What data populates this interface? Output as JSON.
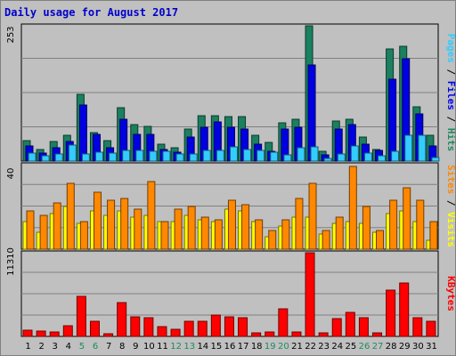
{
  "chart_data": {
    "type": "bar",
    "title": "Daily usage for August 2017",
    "categories": [
      "1",
      "2",
      "3",
      "4",
      "5",
      "6",
      "7",
      "8",
      "9",
      "10",
      "11",
      "12",
      "13",
      "14",
      "15",
      "16",
      "17",
      "18",
      "19",
      "20",
      "21",
      "22",
      "23",
      "24",
      "25",
      "26",
      "27",
      "28",
      "29",
      "30",
      "31"
    ],
    "weekend_days": [
      "5",
      "6",
      "12",
      "13",
      "19",
      "20",
      "26",
      "27"
    ],
    "panels": [
      {
        "name": "pages-files-hits",
        "max_label": "253",
        "ylim": [
          0,
          253
        ],
        "side_labels": [
          {
            "text": "Pages",
            "color": "#33ccff"
          },
          {
            "text": " / ",
            "color": "#000000"
          },
          {
            "text": "Files",
            "color": "#0000ee"
          },
          {
            "text": " / ",
            "color": "#000000"
          },
          {
            "text": "Hits",
            "color": "#1f8a5e"
          }
        ],
        "series": [
          {
            "name": "Hits",
            "color": "#1a8060",
            "values": [
              38,
              22,
              36,
              48,
              125,
              53,
              38,
              100,
              68,
              65,
              32,
              25,
              60,
              85,
              85,
              83,
              83,
              48,
              35,
              72,
              78,
              253,
              18,
              75,
              78,
              45,
              22,
              210,
              215,
              102,
              48
            ]
          },
          {
            "name": "Files",
            "color": "#0000e0",
            "values": [
              28,
              15,
              25,
              37,
              105,
              50,
              25,
              78,
              50,
              50,
              21,
              17,
              45,
              63,
              73,
              63,
              60,
              31,
              18,
              60,
              63,
              180,
              12,
              60,
              68,
              32,
              20,
              153,
              192,
              88,
              28
            ]
          },
          {
            "name": "Pages",
            "color": "#33ccff",
            "values": [
              15,
              10,
              13,
              30,
              14,
              16,
              15,
              20,
              20,
              18,
              18,
              14,
              14,
              20,
              20,
              27,
              22,
              20,
              17,
              12,
              25,
              27,
              5,
              14,
              28,
              15,
              10,
              18,
              48,
              48,
              6
            ]
          }
        ]
      },
      {
        "name": "sites-visits",
        "max_label": "40",
        "ylim": [
          0,
          40
        ],
        "side_labels": [
          {
            "text": "Sites",
            "color": "#ff8800"
          },
          {
            "text": " / ",
            "color": "#000000"
          },
          {
            "text": "Visits",
            "color": "#ffff00"
          }
        ],
        "series": [
          {
            "name": "Visits",
            "color": "#ffff00",
            "values": [
              13,
              8,
              17,
              20,
              12,
              18,
              16,
              18,
              15,
              16,
              13,
              13,
              16,
              14,
              13,
              19,
              18,
              13,
              6,
              11,
              15,
              15,
              7,
              12,
              13,
              12,
              8,
              17,
              18,
              13,
              4
            ]
          },
          {
            "name": "Sites",
            "color": "#ff8800",
            "values": [
              18,
              16,
              22,
              31,
              13,
              27,
              23,
              24,
              19,
              32,
              13,
              19,
              20,
              15,
              14,
              23,
              21,
              14,
              9,
              14,
              24,
              31,
              9,
              15,
              39,
              20,
              9,
              23,
              29,
              23,
              13
            ]
          }
        ]
      },
      {
        "name": "kbytes",
        "max_label": "11310",
        "ylim": [
          0,
          11310
        ],
        "side_labels": [
          {
            "text": "KBytes",
            "color": "#ff0000"
          }
        ],
        "series": [
          {
            "name": "KBytes",
            "color": "#ff0000",
            "values": [
              800,
              780,
              650,
              1500,
              5400,
              2100,
              400,
              4600,
              2700,
              2500,
              1300,
              1000,
              2100,
              2100,
              2900,
              2600,
              2500,
              500,
              550,
              3700,
              650,
              11310,
              500,
              2400,
              3200,
              2500,
              500,
              6200,
              7200,
              2500,
              2000
            ]
          }
        ]
      }
    ]
  }
}
